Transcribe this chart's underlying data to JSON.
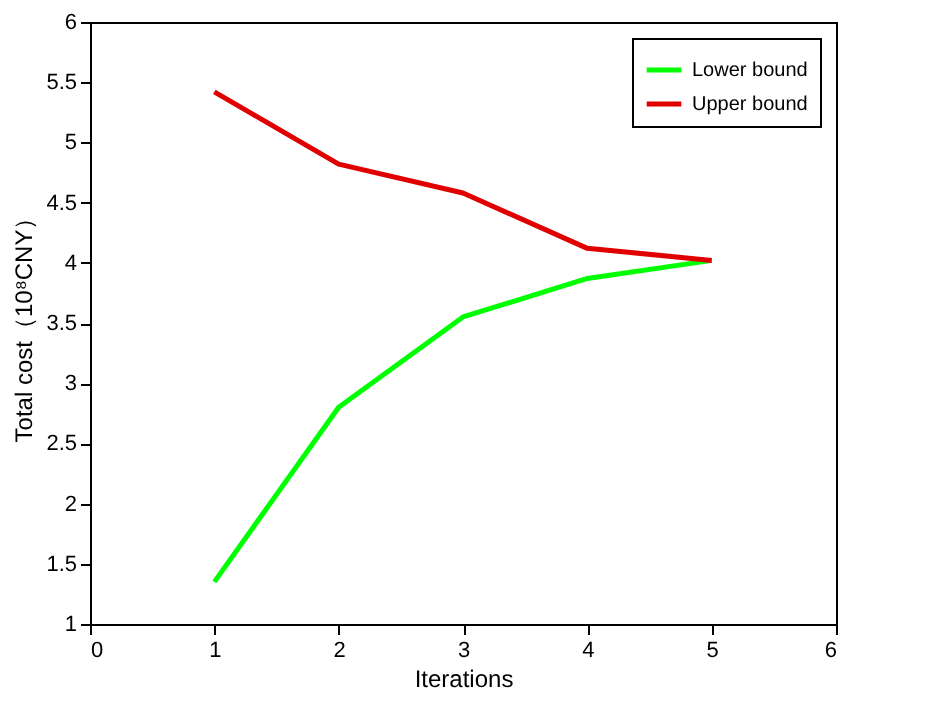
{
  "chart_data": {
    "type": "line",
    "xlabel": "Iterations",
    "ylabel": "Total cost（10⁸CNY）",
    "x": [
      1,
      2,
      3,
      4,
      5
    ],
    "series": [
      {
        "name": "Lower bound",
        "color": "#00ff00",
        "values": [
          1.35,
          2.8,
          3.55,
          3.87,
          4.02
        ]
      },
      {
        "name": "Upper bound",
        "color": "#e00000",
        "values": [
          5.42,
          4.82,
          4.58,
          4.12,
          4.02
        ]
      }
    ],
    "xlim": [
      0,
      6
    ],
    "xticks": [
      0,
      1,
      2,
      3,
      4,
      5,
      6
    ],
    "ylim": [
      1,
      6
    ],
    "yticks": [
      1,
      1.5,
      2,
      2.5,
      3,
      3.5,
      4,
      4.5,
      5,
      5.5,
      6
    ],
    "grid": false,
    "legend": "top right",
    "marker": "none",
    "line_style": "solid"
  }
}
